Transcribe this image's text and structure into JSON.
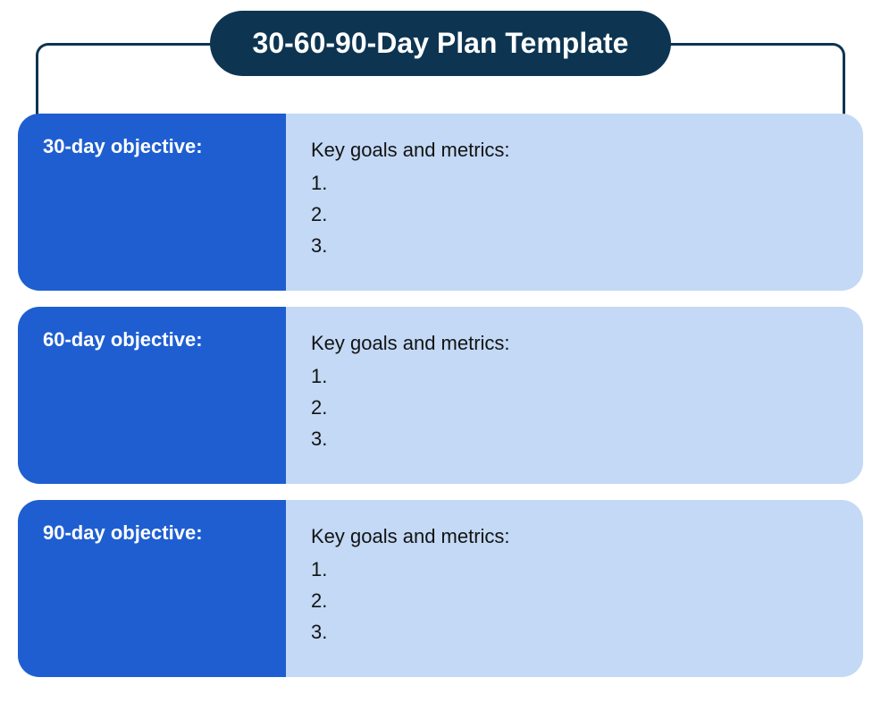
{
  "title": "30-60-90-Day Plan Template",
  "colors": {
    "title_bg": "#0d3552",
    "title_text": "#ffffff",
    "connector_border": "#0d3552",
    "left_bg": "#1e5ed1",
    "left_text": "#ffffff",
    "right_bg": "#c3d9f5",
    "right_text": "#131313",
    "page_bg": "#ffffff"
  },
  "typography": {
    "title_fontsize": 32,
    "title_fontweight": 700,
    "left_fontsize": 22,
    "left_fontweight": 700,
    "right_fontsize": 22,
    "right_fontweight": 400
  },
  "layout": {
    "section_height": 198,
    "section_gap": 18,
    "border_radius": 24,
    "left_width": 300
  },
  "sections": [
    {
      "objective_label": "30-day objective:",
      "goals_label": "Key goals and metrics:",
      "items": [
        "1.",
        "2.",
        "3."
      ]
    },
    {
      "objective_label": "60-day objective:",
      "goals_label": "Key goals and metrics:",
      "items": [
        "1.",
        "2.",
        "3."
      ]
    },
    {
      "objective_label": "90-day objective:",
      "goals_label": "Key goals and metrics:",
      "items": [
        "1.",
        "2.",
        "3."
      ]
    }
  ]
}
